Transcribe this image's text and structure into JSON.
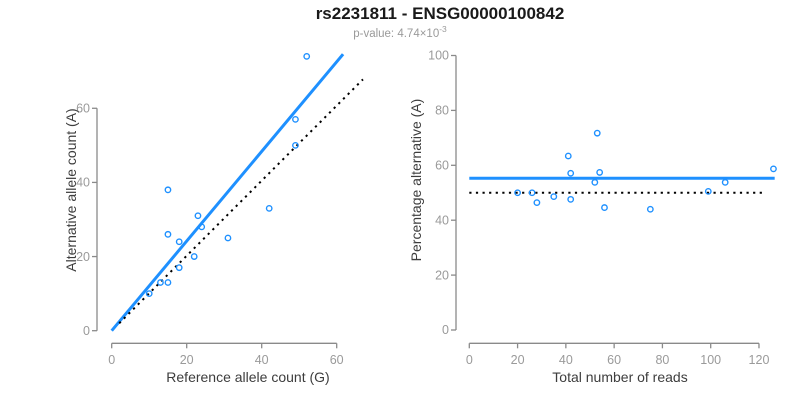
{
  "header": {
    "title": "rs2231811 - ENSG00000100842",
    "subtitle_prefix": "p-value: 4.74×10",
    "subtitle_exponent": "-3"
  },
  "colors": {
    "accent_blue": "#1E90FF",
    "reference_black": "#000000",
    "axis_line_gray": "#8a8a8a",
    "tick_label_gray": "#9a9a9a",
    "axis_title_dark": "#3d3d3d"
  },
  "chart_data": [
    {
      "type": "scatter",
      "name": "allele-counts-panel",
      "xlabel": "Reference allele count (G)",
      "ylabel": "Alternative allele count (A)",
      "x_ticks": [
        0,
        20,
        40,
        60
      ],
      "y_ticks": [
        0,
        20,
        40,
        60
      ],
      "xlim": [
        0,
        67
      ],
      "ylim": [
        0,
        78
      ],
      "grid": false,
      "legend": false,
      "points": [
        [
          52,
          74
        ],
        [
          49,
          57
        ],
        [
          49,
          50
        ],
        [
          15,
          38
        ],
        [
          42,
          33
        ],
        [
          23,
          31
        ],
        [
          24,
          28
        ],
        [
          15,
          26
        ],
        [
          31,
          25
        ],
        [
          18,
          24
        ],
        [
          22,
          20
        ],
        [
          18,
          17
        ],
        [
          13,
          13
        ],
        [
          15,
          13
        ],
        [
          10,
          10
        ]
      ],
      "lines": [
        {
          "name": "fitted-line",
          "x1": 0,
          "y1": 0,
          "x2": 61.7,
          "y2": 74.6,
          "style": "solid",
          "color": "#1E90FF",
          "width": 3
        },
        {
          "name": "identity-line",
          "x1": 2,
          "y1": 2,
          "x2": 67,
          "y2": 67.8,
          "style": "dotted",
          "color": "#000000",
          "width": 2
        }
      ]
    },
    {
      "type": "scatter",
      "name": "percentage-panel",
      "xlabel": "Total number of reads",
      "ylabel": "Percentage alternative (A)",
      "x_ticks": [
        0,
        20,
        40,
        60,
        80,
        100,
        120
      ],
      "y_ticks": [
        0,
        20,
        40,
        60,
        80,
        100
      ],
      "xlim": [
        0,
        130
      ],
      "ylim": [
        0,
        100
      ],
      "grid": false,
      "legend": false,
      "points": [
        [
          126,
          58.7
        ],
        [
          106,
          53.8
        ],
        [
          99,
          50.5
        ],
        [
          53,
          71.7
        ],
        [
          75,
          44.0
        ],
        [
          54,
          57.4
        ],
        [
          52,
          53.8
        ],
        [
          41,
          63.4
        ],
        [
          56,
          44.6
        ],
        [
          42,
          57.1
        ],
        [
          42,
          47.6
        ],
        [
          35,
          48.6
        ],
        [
          26,
          50.0
        ],
        [
          28,
          46.4
        ],
        [
          20,
          50.0
        ]
      ],
      "lines": [
        {
          "name": "mean-percentage-line",
          "x1": 0,
          "y1": 55.3,
          "x2": 126.5,
          "y2": 55.3,
          "style": "solid",
          "color": "#1E90FF",
          "width": 3
        },
        {
          "name": "fifty-percent-line",
          "x1": 0,
          "y1": 50,
          "x2": 123,
          "y2": 50,
          "style": "dotted",
          "color": "#000000",
          "width": 2
        }
      ]
    }
  ]
}
